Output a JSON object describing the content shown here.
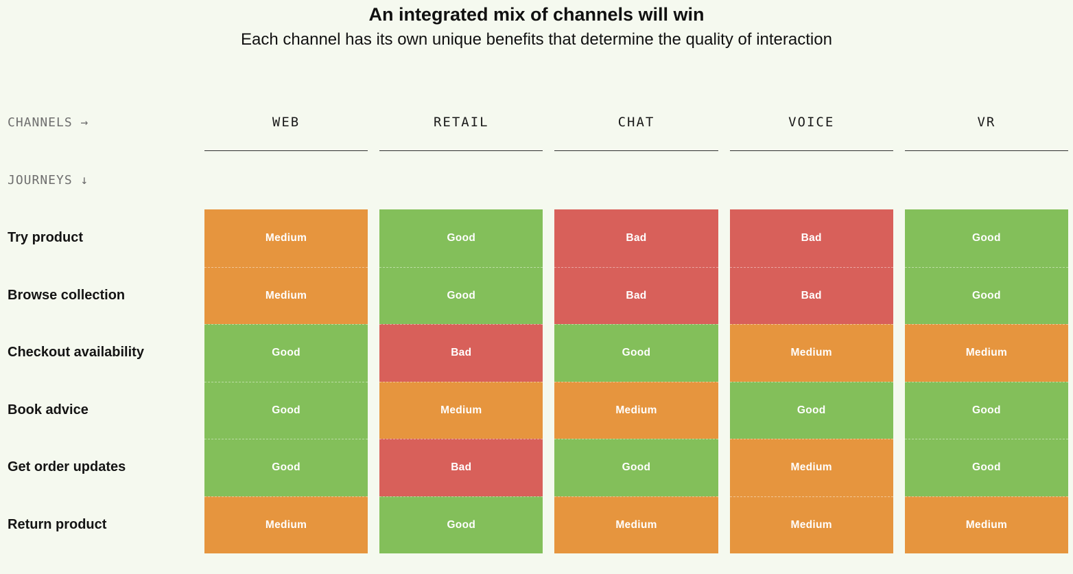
{
  "header": {
    "title": "An integrated mix of channels will win",
    "subtitle": "Each channel has its own unique benefits that determine the quality of interaction"
  },
  "matrix": {
    "channels_label": "CHANNELS →",
    "journeys_label": "JOURNEYS ↓",
    "channels": [
      "WEB",
      "RETAIL",
      "CHAT",
      "VOICE",
      "VR"
    ],
    "rows": [
      {
        "label": "Try product",
        "cells": [
          {
            "label": "Medium",
            "tone": "medium"
          },
          {
            "label": "Good",
            "tone": "good"
          },
          {
            "label": "Bad",
            "tone": "bad"
          },
          {
            "label": "Bad",
            "tone": "bad"
          },
          {
            "label": "Good",
            "tone": "good"
          }
        ]
      },
      {
        "label": "Browse collection",
        "cells": [
          {
            "label": "Medium",
            "tone": "medium"
          },
          {
            "label": "Good",
            "tone": "good"
          },
          {
            "label": "Bad",
            "tone": "bad"
          },
          {
            "label": "Bad",
            "tone": "bad"
          },
          {
            "label": "Good",
            "tone": "good"
          }
        ]
      },
      {
        "label": "Checkout availability",
        "cells": [
          {
            "label": "Good",
            "tone": "good"
          },
          {
            "label": "Bad",
            "tone": "bad"
          },
          {
            "label": "Good",
            "tone": "good"
          },
          {
            "label": "Medium",
            "tone": "medium"
          },
          {
            "label": "Medium",
            "tone": "medium"
          }
        ]
      },
      {
        "label": "Book advice",
        "cells": [
          {
            "label": "Good",
            "tone": "good"
          },
          {
            "label": "Medium",
            "tone": "medium"
          },
          {
            "label": "Medium",
            "tone": "medium"
          },
          {
            "label": "Good",
            "tone": "good"
          },
          {
            "label": "Good",
            "tone": "good"
          }
        ]
      },
      {
        "label": "Get order updates",
        "cells": [
          {
            "label": "Good",
            "tone": "good"
          },
          {
            "label": "Bad",
            "tone": "bad"
          },
          {
            "label": "Good",
            "tone": "good"
          },
          {
            "label": "Medium",
            "tone": "medium"
          },
          {
            "label": "Good",
            "tone": "good"
          }
        ]
      },
      {
        "label": "Return product",
        "cells": [
          {
            "label": "Medium",
            "tone": "medium"
          },
          {
            "label": "Good",
            "tone": "good"
          },
          {
            "label": "Medium",
            "tone": "medium"
          },
          {
            "label": "Medium",
            "tone": "medium"
          },
          {
            "label": "Medium",
            "tone": "medium"
          }
        ]
      }
    ]
  },
  "colors": {
    "good": "#83bf5a",
    "medium": "#e6953e",
    "bad": "#d8605a",
    "background": "#f5f9ef",
    "rule": "#2e2e2e"
  },
  "chart_data": {
    "type": "heatmap",
    "title": "An integrated mix of channels will win",
    "subtitle": "Each channel has its own unique benefits that determine the quality of interaction",
    "x_label": "CHANNELS →",
    "y_label": "JOURNEYS ↓",
    "x_categories": [
      "WEB",
      "RETAIL",
      "CHAT",
      "VOICE",
      "VR"
    ],
    "y_categories": [
      "Try product",
      "Browse collection",
      "Checkout availability",
      "Book advice",
      "Get order updates",
      "Return product"
    ],
    "values": [
      [
        "Medium",
        "Good",
        "Bad",
        "Bad",
        "Good"
      ],
      [
        "Medium",
        "Good",
        "Bad",
        "Bad",
        "Good"
      ],
      [
        "Good",
        "Bad",
        "Good",
        "Medium",
        "Medium"
      ],
      [
        "Good",
        "Medium",
        "Medium",
        "Good",
        "Good"
      ],
      [
        "Good",
        "Bad",
        "Good",
        "Medium",
        "Good"
      ],
      [
        "Medium",
        "Good",
        "Medium",
        "Medium",
        "Medium"
      ]
    ],
    "scale": {
      "Good": "#83bf5a",
      "Medium": "#e6953e",
      "Bad": "#d8605a"
    },
    "legend": false,
    "grid": false
  }
}
